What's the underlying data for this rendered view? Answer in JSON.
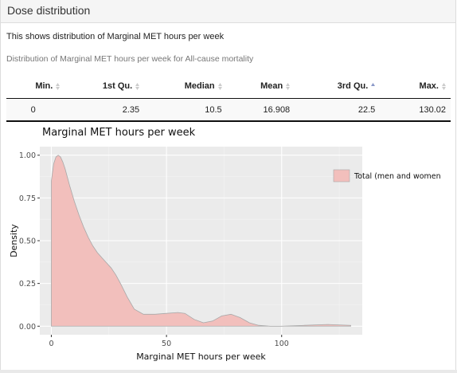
{
  "panel": {
    "title": "Dose distribution"
  },
  "description": "This shows distribution of Marginal MET hours per week",
  "table": {
    "caption": "Distribution of Marginal MET hours per week for All-cause mortality",
    "columns": [
      {
        "label": "Min.",
        "sort": "none"
      },
      {
        "label": "1st Qu.",
        "sort": "none"
      },
      {
        "label": "Median",
        "sort": "none"
      },
      {
        "label": "Mean",
        "sort": "none"
      },
      {
        "label": "3rd Qu.",
        "sort": "ascending"
      },
      {
        "label": "Max.",
        "sort": "none"
      }
    ],
    "rows": [
      [
        "0",
        "2.35",
        "10.5",
        "16.908",
        "22.5",
        "130.02"
      ]
    ]
  },
  "colors": {
    "fill": "#f2bfbc",
    "line": "#a8a8a8",
    "panel_bg": "#ebebeb",
    "sort_active": "#8a98c8",
    "sort_inactive": "#cccccc"
  },
  "chart_data": {
    "type": "area",
    "title": "Marginal MET hours per week",
    "xlabel": "Marginal MET hours per week",
    "ylabel": "Density",
    "xlim": [
      -5,
      135
    ],
    "ylim": [
      -0.05,
      1.05
    ],
    "xticks": [
      0,
      50,
      100
    ],
    "yticks": [
      "0.00",
      "0.25",
      "0.50",
      "0.75",
      "1.00"
    ],
    "grid": true,
    "legend_position": "right",
    "series": [
      {
        "name": "Total (men and women",
        "x": [
          0,
          1,
          2,
          3,
          4,
          5,
          6,
          7,
          8,
          10,
          12,
          14,
          16,
          18,
          20,
          22,
          24,
          26,
          28,
          30,
          33,
          36,
          40,
          45,
          50,
          55,
          58,
          62,
          66,
          70,
          74,
          78,
          82,
          86,
          90,
          95,
          100,
          110,
          120,
          130
        ],
        "y": [
          0.85,
          0.95,
          0.99,
          1.0,
          0.99,
          0.96,
          0.92,
          0.87,
          0.82,
          0.73,
          0.65,
          0.58,
          0.52,
          0.47,
          0.43,
          0.4,
          0.37,
          0.34,
          0.3,
          0.25,
          0.17,
          0.1,
          0.07,
          0.07,
          0.075,
          0.08,
          0.075,
          0.04,
          0.02,
          0.03,
          0.06,
          0.07,
          0.05,
          0.02,
          0.005,
          0.0,
          0.0,
          0.005,
          0.01,
          0.005
        ]
      }
    ]
  }
}
